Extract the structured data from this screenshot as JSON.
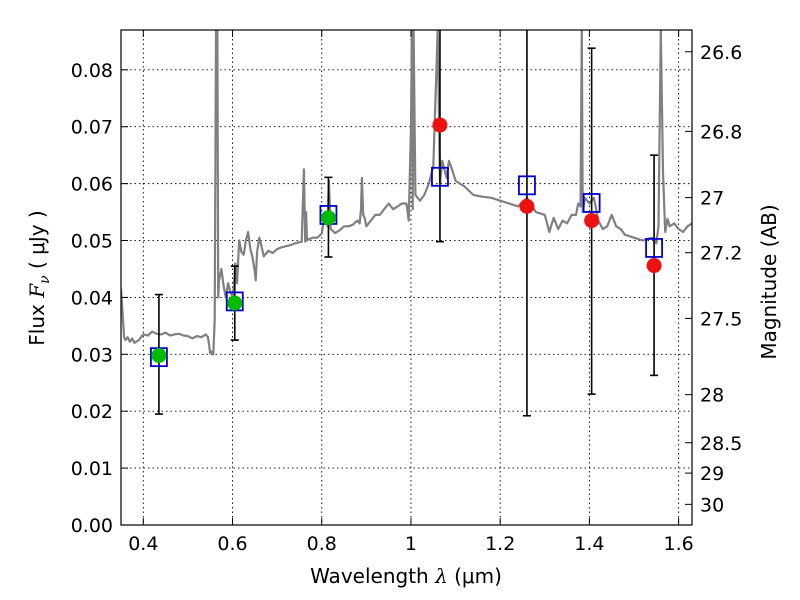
{
  "chart_data": {
    "type": "scatter",
    "xlabel_text": "Wavelength  ",
    "xlabel_math": "λ",
    "xlabel_unit": " (μm)",
    "ylabel_text": "Flux  ",
    "ylabel_math": "F",
    "ylabel_sub": "ν",
    "ylabel_unit": "  ( μJy )",
    "y2label": "Magnitude (AB)",
    "xlim": [
      0.35,
      1.63
    ],
    "ylim": [
      0.0,
      0.087
    ],
    "x_ticks": [
      0.4,
      0.6,
      0.8,
      1.0,
      1.2,
      1.4,
      1.6
    ],
    "x_tick_labels": [
      "0.4",
      "0.6",
      "0.8",
      "1",
      "1.2",
      "1.4",
      "1.6"
    ],
    "y_ticks": [
      0.0,
      0.01,
      0.02,
      0.03,
      0.04,
      0.05,
      0.06,
      0.07,
      0.08
    ],
    "y_tick_labels": [
      "0.00",
      "0.01",
      "0.02",
      "0.03",
      "0.04",
      "0.05",
      "0.06",
      "0.07",
      "0.08"
    ],
    "magnitude_ticks": [
      26.6,
      26.8,
      27.0,
      27.2,
      27.5,
      28.0,
      28.5,
      29.0,
      30.0
    ],
    "magnitude_tick_labels": [
      "26.6",
      "26.8",
      "27",
      "27.2",
      "27.5",
      "28",
      "28.5",
      "29",
      "30"
    ],
    "colors": {
      "model": "#808080",
      "model_photometry": "#0000cc",
      "detections": "#00bb00",
      "upper_constraints": "#ee1111",
      "errorbar": "#000000"
    },
    "series": [
      {
        "name": "model_spectrum",
        "kind": "line",
        "x": [
          0.35,
          0.353,
          0.357,
          0.36,
          0.365,
          0.37,
          0.375,
          0.38,
          0.39,
          0.4,
          0.41,
          0.42,
          0.43,
          0.44,
          0.45,
          0.46,
          0.47,
          0.48,
          0.49,
          0.5,
          0.51,
          0.52,
          0.53,
          0.54,
          0.545,
          0.55,
          0.553,
          0.557,
          0.56,
          0.563,
          0.566,
          0.568,
          0.57,
          0.575,
          0.58,
          0.585,
          0.59,
          0.595,
          0.6,
          0.603,
          0.606,
          0.61,
          0.615,
          0.62,
          0.625,
          0.63,
          0.635,
          0.64,
          0.645,
          0.65,
          0.652,
          0.655,
          0.66,
          0.665,
          0.67,
          0.68,
          0.69,
          0.7,
          0.71,
          0.72,
          0.73,
          0.74,
          0.75,
          0.755,
          0.76,
          0.763,
          0.765,
          0.767,
          0.77,
          0.78,
          0.79,
          0.8,
          0.805,
          0.81,
          0.813,
          0.816,
          0.82,
          0.83,
          0.84,
          0.85,
          0.86,
          0.87,
          0.88,
          0.885,
          0.888,
          0.89,
          0.893,
          0.896,
          0.9,
          0.91,
          0.92,
          0.93,
          0.94,
          0.95,
          0.96,
          0.97,
          0.98,
          0.99,
          0.995,
          1.0,
          1.002,
          1.004,
          1.006,
          1.01,
          1.02,
          1.03,
          1.04,
          1.05,
          1.06,
          1.065,
          1.07,
          1.075,
          1.08,
          1.085,
          1.09,
          1.1,
          1.12,
          1.14,
          1.16,
          1.18,
          1.2,
          1.22,
          1.24,
          1.26,
          1.28,
          1.3,
          1.31,
          1.32,
          1.33,
          1.34,
          1.35,
          1.36,
          1.37,
          1.375,
          1.38,
          1.383,
          1.385,
          1.39,
          1.4,
          1.41,
          1.42,
          1.43,
          1.44,
          1.45,
          1.46,
          1.47,
          1.48,
          1.5,
          1.52,
          1.54,
          1.55,
          1.555,
          1.56,
          1.565,
          1.57,
          1.575,
          1.58,
          1.59,
          1.6,
          1.61,
          1.62,
          1.63
        ],
        "y": [
          0.0415,
          0.038,
          0.033,
          0.0325,
          0.033,
          0.0322,
          0.0328,
          0.032,
          0.0325,
          0.0335,
          0.0333,
          0.034,
          0.0336,
          0.0335,
          0.0338,
          0.0333,
          0.0335,
          0.0336,
          0.0333,
          0.0332,
          0.0328,
          0.0332,
          0.033,
          0.0335,
          0.033,
          0.0302,
          0.0305,
          0.03,
          0.036,
          0.087,
          0.087,
          0.04,
          0.043,
          0.045,
          0.042,
          0.04,
          0.0425,
          0.041,
          0.04,
          0.042,
          0.046,
          0.0425,
          0.05,
          0.048,
          0.0475,
          0.05,
          0.0515,
          0.0485,
          0.047,
          0.0445,
          0.043,
          0.048,
          0.0505,
          0.049,
          0.0472,
          0.0482,
          0.0478,
          0.0485,
          0.0488,
          0.049,
          0.0492,
          0.0495,
          0.0497,
          0.0498,
          0.0625,
          0.0498,
          0.055,
          0.05,
          0.0502,
          0.0505,
          0.0505,
          0.0512,
          0.0537,
          0.0545,
          0.0525,
          0.0605,
          0.052,
          0.0513,
          0.0518,
          0.0525,
          0.0525,
          0.0528,
          0.0535,
          0.053,
          0.0555,
          0.061,
          0.0545,
          0.054,
          0.0525,
          0.0535,
          0.0545,
          0.0545,
          0.0555,
          0.0565,
          0.0555,
          0.056,
          0.0565,
          0.0565,
          0.0535,
          0.07,
          0.087,
          0.0555,
          0.087,
          0.058,
          0.057,
          0.058,
          0.06,
          0.063,
          0.087,
          0.06,
          0.064,
          0.0625,
          0.061,
          0.064,
          0.063,
          0.0605,
          0.0595,
          0.058,
          0.0577,
          0.0575,
          0.057,
          0.0565,
          0.056,
          0.0575,
          0.055,
          0.0545,
          0.0515,
          0.054,
          0.052,
          0.0535,
          0.053,
          0.0545,
          0.0545,
          0.0565,
          0.056,
          0.087,
          0.055,
          0.0575,
          0.0565,
          0.0575,
          0.0535,
          0.052,
          0.0525,
          0.0545,
          0.0525,
          0.052,
          0.051,
          0.0505,
          0.05,
          0.0505,
          0.0495,
          0.0525,
          0.087,
          0.062,
          0.0515,
          0.0538,
          0.0525,
          0.053,
          0.052,
          0.0515,
          0.0525,
          0.053
        ]
      },
      {
        "name": "model_photometry",
        "kind": "open_square",
        "x": [
          0.435,
          0.605,
          0.815,
          1.065,
          1.26,
          1.405,
          1.545
        ],
        "y": [
          0.0295,
          0.0393,
          0.0545,
          0.0612,
          0.0597,
          0.0566,
          0.0487
        ]
      },
      {
        "name": "detections",
        "kind": "filled_circle",
        "x": [
          0.435,
          0.605,
          0.815
        ],
        "y": [
          0.0298,
          0.039,
          0.054
        ],
        "yerr_low": [
          0.0103,
          0.0065,
          0.0069
        ],
        "yerr_high": [
          0.0107,
          0.0065,
          0.0071
        ]
      },
      {
        "name": "upper_constraints",
        "kind": "filled_circle",
        "x": [
          1.065,
          1.26,
          1.405,
          1.545
        ],
        "y": [
          0.0703,
          0.056,
          0.0535,
          0.0456
        ],
        "yerr_low": [
          0.0205,
          0.0368,
          0.0305,
          0.0193
        ],
        "yerr_high": [
          0.0167,
          0.031,
          0.0303,
          0.0194
        ]
      }
    ]
  }
}
